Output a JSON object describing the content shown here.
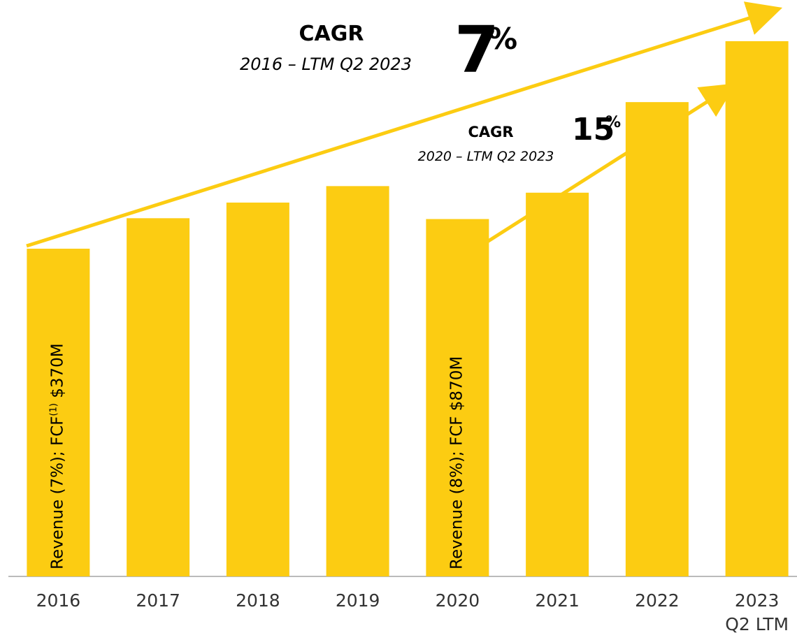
{
  "chart_data": {
    "type": "bar",
    "categories": [
      "2016",
      "2017",
      "2018",
      "2019",
      "2020",
      "2021",
      "2022",
      "2023\nQ2 LTM"
    ],
    "values": [
      398,
      435,
      454,
      474,
      434,
      466,
      576,
      650
    ],
    "color": "#fccc12",
    "ylim": [
      0,
      700
    ],
    "bar_labels": [
      {
        "index": 0,
        "parts": [
          "Revenue (7%); FCF",
          "(1)",
          " $370M"
        ]
      },
      {
        "index": 4,
        "parts": [
          "Revenue (8%); FCF $870M"
        ]
      }
    ],
    "annotations": [
      {
        "label": "CAGR",
        "period": "2016 – LTM Q2 2023",
        "value": 7,
        "unit": "%"
      },
      {
        "label": "CAGR",
        "period": "2020 – LTM Q2 2023",
        "value": 15,
        "unit": "%"
      }
    ]
  }
}
